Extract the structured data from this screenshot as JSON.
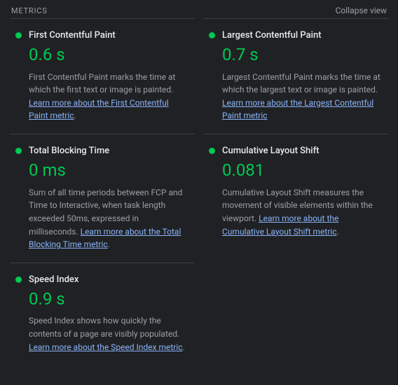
{
  "header": {
    "title": "METRICS",
    "collapse_label": "Collapse view"
  },
  "colors": {
    "status_good": "#00c853",
    "value_good": "#00c853",
    "link": "#8ab4f8"
  },
  "metrics": [
    {
      "title": "First Contentful Paint",
      "value": "0.6 s",
      "status": "good",
      "desc": "First Contentful Paint marks the time at which the first text or image is painted. ",
      "learn": "Learn more about the First Contentful Paint metric"
    },
    {
      "title": "Largest Contentful Paint",
      "value": "0.7 s",
      "status": "good",
      "desc": "Largest Contentful Paint marks the time at which the largest text or image is painted. ",
      "learn": "Learn more about the Largest Contentful Paint metric"
    },
    {
      "title": "Total Blocking Time",
      "value": "0 ms",
      "status": "good",
      "desc": "Sum of all time periods between FCP and Time to Interactive, when task length exceeded 50ms, expressed in milliseconds. ",
      "learn": "Learn more about the Total Blocking Time metric"
    },
    {
      "title": "Cumulative Layout Shift",
      "value": "0.081",
      "status": "good",
      "desc": "Cumulative Layout Shift measures the movement of visible elements within the viewport. ",
      "learn": "Learn more about the Cumulative Layout Shift metric"
    },
    {
      "title": "Speed Index",
      "value": "0.9 s",
      "status": "good",
      "desc": "Speed Index shows how quickly the contents of a page are visibly populated. ",
      "learn": "Learn more about the Speed Index metric"
    }
  ]
}
